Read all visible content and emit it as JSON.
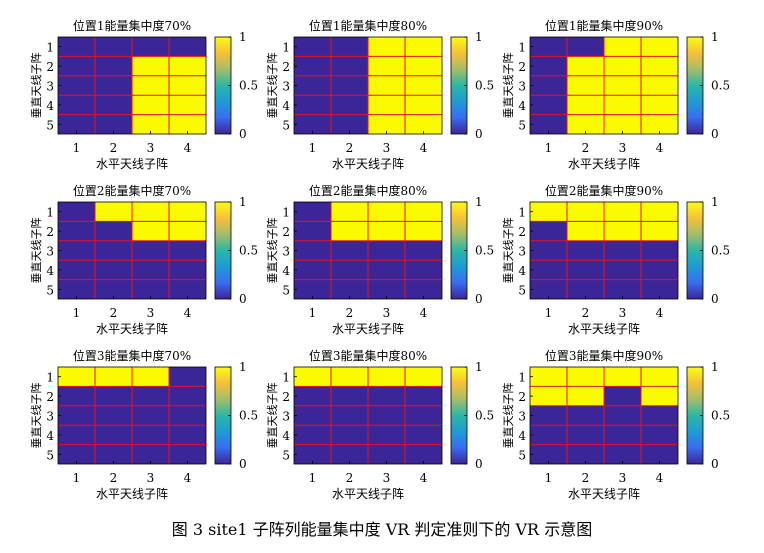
{
  "figure": {
    "caption": "图 3 site1 子阵列能量集中度 VR 判定准则下的 VR 示意图",
    "colors": {
      "low": "#3c2596",
      "high": "#fbfb00",
      "grid_line": "#e8121e"
    }
  },
  "colorbar": {
    "ticks": [
      "1",
      "0.5",
      "0"
    ],
    "stops": [
      "#fbfb14",
      "#f6c03a",
      "#a5bd6a",
      "#2ab7a6",
      "#1e9bd6",
      "#3a6cf0",
      "#3c2596"
    ]
  },
  "chart_data": [
    {
      "type": "heatmap",
      "title": "位置1能量集中度70%",
      "xlabel": "水平天线子阵",
      "ylabel": "垂直天线子阵",
      "x_ticks": [
        "1",
        "2",
        "3",
        "4"
      ],
      "y_ticks": [
        "1",
        "2",
        "3",
        "4",
        "5"
      ],
      "clim": [
        0,
        1
      ],
      "values": [
        [
          0,
          0,
          0,
          0
        ],
        [
          0,
          0,
          1,
          1
        ],
        [
          0,
          0,
          1,
          1
        ],
        [
          0,
          0,
          1,
          1
        ],
        [
          0,
          0,
          1,
          1
        ]
      ]
    },
    {
      "type": "heatmap",
      "title": "位置1能量集中度80%",
      "xlabel": "水平天线子阵",
      "ylabel": "垂直天线子阵",
      "x_ticks": [
        "1",
        "2",
        "3",
        "4"
      ],
      "y_ticks": [
        "1",
        "2",
        "3",
        "4",
        "5"
      ],
      "clim": [
        0,
        1
      ],
      "values": [
        [
          0,
          0,
          1,
          1
        ],
        [
          0,
          0,
          1,
          1
        ],
        [
          0,
          0,
          1,
          1
        ],
        [
          0,
          0,
          1,
          1
        ],
        [
          0,
          0,
          1,
          1
        ]
      ]
    },
    {
      "type": "heatmap",
      "title": "位置1能量集中度90%",
      "xlabel": "水平天线子阵",
      "ylabel": "垂直天线子阵",
      "x_ticks": [
        "1",
        "2",
        "3",
        "4"
      ],
      "y_ticks": [
        "1",
        "2",
        "3",
        "4",
        "5"
      ],
      "clim": [
        0,
        1
      ],
      "values": [
        [
          0,
          0,
          1,
          1
        ],
        [
          0,
          1,
          1,
          1
        ],
        [
          0,
          1,
          1,
          1
        ],
        [
          0,
          1,
          1,
          1
        ],
        [
          0,
          1,
          1,
          1
        ]
      ]
    },
    {
      "type": "heatmap",
      "title": "位置2能量集中度70%",
      "xlabel": "水平天线子阵",
      "ylabel": "垂直天线子阵",
      "x_ticks": [
        "1",
        "2",
        "3",
        "4"
      ],
      "y_ticks": [
        "1",
        "2",
        "3",
        "4",
        "5"
      ],
      "clim": [
        0,
        1
      ],
      "values": [
        [
          0,
          1,
          1,
          1
        ],
        [
          0,
          0,
          1,
          1
        ],
        [
          0,
          0,
          0,
          0
        ],
        [
          0,
          0,
          0,
          0
        ],
        [
          0,
          0,
          0,
          0
        ]
      ]
    },
    {
      "type": "heatmap",
      "title": "位置2能量集中度80%",
      "xlabel": "水平天线子阵",
      "ylabel": "垂直天线子阵",
      "x_ticks": [
        "1",
        "2",
        "3",
        "4"
      ],
      "y_ticks": [
        "1",
        "2",
        "3",
        "4",
        "5"
      ],
      "clim": [
        0,
        1
      ],
      "values": [
        [
          0,
          1,
          1,
          1
        ],
        [
          0,
          1,
          1,
          1
        ],
        [
          0,
          0,
          0,
          0
        ],
        [
          0,
          0,
          0,
          0
        ],
        [
          0,
          0,
          0,
          0
        ]
      ]
    },
    {
      "type": "heatmap",
      "title": "位置2能量集中度90%",
      "xlabel": "水平天线子阵",
      "ylabel": "垂直天线子阵",
      "x_ticks": [
        "1",
        "2",
        "3",
        "4"
      ],
      "y_ticks": [
        "1",
        "2",
        "3",
        "4",
        "5"
      ],
      "clim": [
        0,
        1
      ],
      "values": [
        [
          1,
          1,
          1,
          1
        ],
        [
          0,
          1,
          1,
          1
        ],
        [
          0,
          0,
          0,
          0
        ],
        [
          0,
          0,
          0,
          0
        ],
        [
          0,
          0,
          0,
          0
        ]
      ]
    },
    {
      "type": "heatmap",
      "title": "位置3能量集中度70%",
      "xlabel": "水平天线子阵",
      "ylabel": "垂直天线子阵",
      "x_ticks": [
        "1",
        "2",
        "3",
        "4"
      ],
      "y_ticks": [
        "1",
        "2",
        "3",
        "4",
        "5"
      ],
      "clim": [
        0,
        1
      ],
      "values": [
        [
          1,
          1,
          1,
          0
        ],
        [
          0,
          0,
          0,
          0
        ],
        [
          0,
          0,
          0,
          0
        ],
        [
          0,
          0,
          0,
          0
        ],
        [
          0,
          0,
          0,
          0
        ]
      ]
    },
    {
      "type": "heatmap",
      "title": "位置3能量集中度80%",
      "xlabel": "水平天线子阵",
      "ylabel": "垂直天线子阵",
      "x_ticks": [
        "1",
        "2",
        "3",
        "4"
      ],
      "y_ticks": [
        "1",
        "2",
        "3",
        "4",
        "5"
      ],
      "clim": [
        0,
        1
      ],
      "values": [
        [
          1,
          1,
          1,
          1
        ],
        [
          0,
          0,
          0,
          0
        ],
        [
          0,
          0,
          0,
          0
        ],
        [
          0,
          0,
          0,
          0
        ],
        [
          0,
          0,
          0,
          0
        ]
      ]
    },
    {
      "type": "heatmap",
      "title": "位置3能量集中度90%",
      "xlabel": "水平天线子阵",
      "ylabel": "垂直天线子阵",
      "x_ticks": [
        "1",
        "2",
        "3",
        "4"
      ],
      "y_ticks": [
        "1",
        "2",
        "3",
        "4",
        "5"
      ],
      "clim": [
        0,
        1
      ],
      "values": [
        [
          1,
          1,
          1,
          1
        ],
        [
          1,
          1,
          0,
          1
        ],
        [
          0,
          0,
          0,
          0
        ],
        [
          0,
          0,
          0,
          0
        ],
        [
          0,
          0,
          0,
          0
        ]
      ]
    }
  ]
}
